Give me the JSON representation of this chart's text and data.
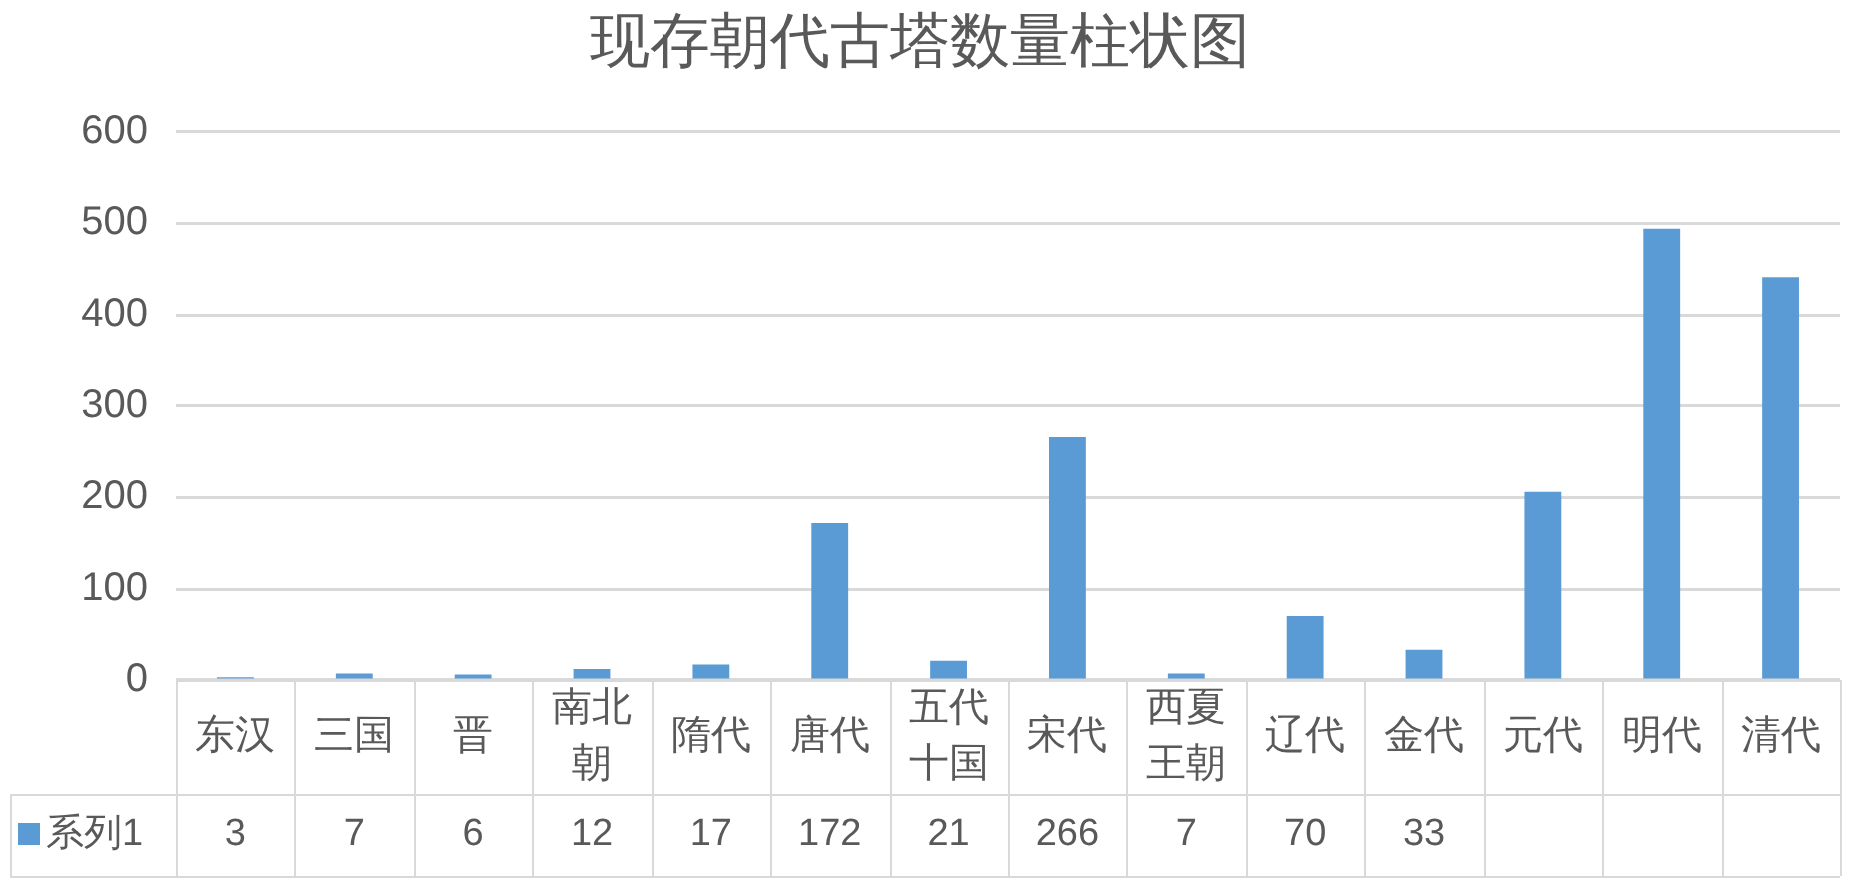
{
  "chart_data": {
    "type": "bar",
    "title": "现存朝代古塔数量柱状图",
    "categories": [
      "东汉",
      "三国",
      "晋",
      "南北朝",
      "隋代",
      "唐代",
      "五代十国",
      "宋代",
      "西夏王朝",
      "辽代",
      "金代",
      "元代",
      "明代",
      "清代"
    ],
    "series": [
      {
        "name": "系列1",
        "color": "#5b9bd5",
        "values": [
          3,
          7,
          6,
          12,
          17,
          172,
          21,
          266,
          7,
          70,
          33,
          206,
          494,
          441
        ],
        "value_labels": [
          "3",
          "7",
          "6",
          "12",
          "17",
          "172",
          "21",
          "266",
          "7",
          "70",
          "33",
          null,
          null,
          null
        ]
      }
    ],
    "ylim": [
      0,
      600
    ],
    "yticks": [
      0,
      100,
      200,
      300,
      400,
      500,
      600
    ],
    "grid": "y",
    "legend": "bottom left"
  }
}
